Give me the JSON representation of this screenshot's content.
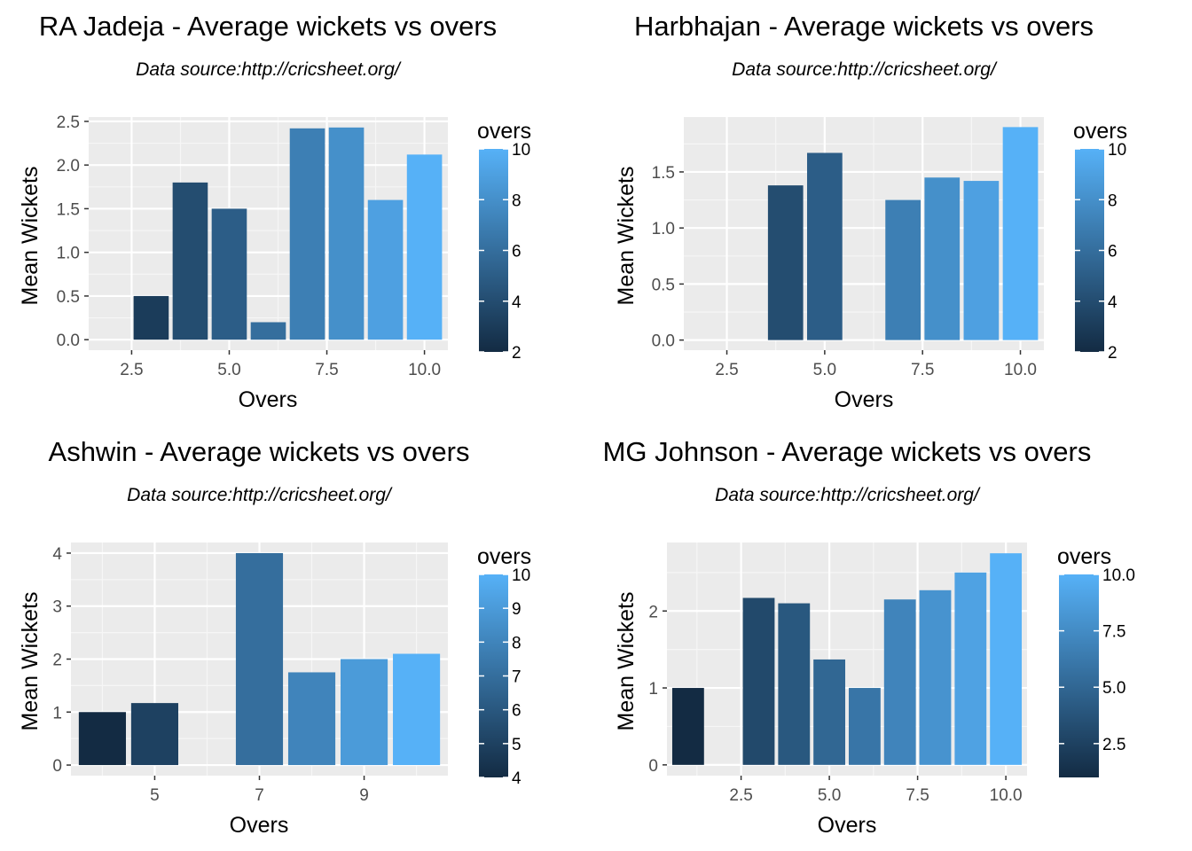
{
  "chart_data": [
    {
      "type": "bar",
      "title": "RA Jadeja - Average wickets vs overs",
      "subtitle": "Data source:http://cricsheet.org/",
      "xlabel": "Overs",
      "ylabel": "Mean Wickets",
      "xlim": [
        1.4,
        10.6
      ],
      "ylim": [
        -0.12,
        2.55
      ],
      "xticks": [
        2.5,
        5.0,
        7.5,
        10.0
      ],
      "xtick_labels": [
        "2.5",
        "5.0",
        "7.5",
        "10.0"
      ],
      "yticks": [
        0.0,
        0.5,
        1.0,
        1.5,
        2.0,
        2.5
      ],
      "ytick_labels": [
        "0.0",
        "0.5",
        "1.0",
        "1.5",
        "2.0",
        "2.5"
      ],
      "x": [
        3,
        4,
        5,
        6,
        7,
        8,
        9,
        10
      ],
      "values": [
        0.5,
        1.8,
        1.5,
        0.2,
        2.42,
        2.43,
        1.6,
        2.12
      ],
      "legend": {
        "title": "overs",
        "min": 2,
        "max": 10,
        "ticks": [
          2,
          4,
          6,
          8,
          10
        ],
        "tick_labels": [
          "2",
          "4",
          "6",
          "8",
          "10"
        ],
        "placement": "right"
      },
      "colors": {
        "low": "#132b43",
        "high": "#56b1f7"
      },
      "grid": true
    },
    {
      "type": "bar",
      "title": "Harbhajan - Average wickets vs overs",
      "subtitle": "Data source:http://cricsheet.org/",
      "xlabel": "Overs",
      "ylabel": "Mean Wickets",
      "xlim": [
        1.4,
        10.6
      ],
      "ylim": [
        -0.09,
        1.99
      ],
      "xticks": [
        2.5,
        5.0,
        7.5,
        10.0
      ],
      "xtick_labels": [
        "2.5",
        "5.0",
        "7.5",
        "10.0"
      ],
      "yticks": [
        0.0,
        0.5,
        1.0,
        1.5
      ],
      "ytick_labels": [
        "0.0",
        "0.5",
        "1.0",
        "1.5"
      ],
      "x": [
        4,
        5,
        7,
        8,
        9,
        10
      ],
      "values": [
        1.38,
        1.67,
        1.25,
        1.45,
        1.42,
        1.9
      ],
      "legend": {
        "title": "overs",
        "min": 2,
        "max": 10,
        "ticks": [
          2,
          4,
          6,
          8,
          10
        ],
        "tick_labels": [
          "2",
          "4",
          "6",
          "8",
          "10"
        ],
        "placement": "right"
      },
      "colors": {
        "low": "#132b43",
        "high": "#56b1f7"
      },
      "grid": true
    },
    {
      "type": "bar",
      "title": "Ashwin - Average wickets vs overs",
      "subtitle": "Data source:http://cricsheet.org/",
      "xlabel": "Overs",
      "ylabel": "Mean Wickets",
      "xlim": [
        3.4,
        10.6
      ],
      "ylim": [
        -0.2,
        4.2
      ],
      "xticks": [
        5,
        7,
        9
      ],
      "xtick_labels": [
        "5",
        "7",
        "9"
      ],
      "yticks": [
        0,
        1,
        2,
        3,
        4
      ],
      "ytick_labels": [
        "0",
        "1",
        "2",
        "3",
        "4"
      ],
      "x": [
        4,
        5,
        7,
        8,
        9,
        10
      ],
      "values": [
        1.0,
        1.17,
        4.0,
        1.75,
        2.0,
        2.1
      ],
      "legend": {
        "title": "overs",
        "min": 4,
        "max": 10,
        "ticks": [
          4,
          5,
          6,
          7,
          8,
          9,
          10
        ],
        "tick_labels": [
          "4",
          "5",
          "6",
          "7",
          "8",
          "9",
          "10"
        ],
        "placement": "right"
      },
      "colors": {
        "low": "#132b43",
        "high": "#56b1f7"
      },
      "grid": true
    },
    {
      "type": "bar",
      "title": "MG Johnson - Average wickets vs overs",
      "subtitle": "Data source:http://cricsheet.org/",
      "xlabel": "Overs",
      "ylabel": "Mean Wickets",
      "xlim": [
        0.4,
        10.6
      ],
      "ylim": [
        -0.14,
        2.89
      ],
      "xticks": [
        2.5,
        5.0,
        7.5,
        10.0
      ],
      "xtick_labels": [
        "2.5",
        "5.0",
        "7.5",
        "10.0"
      ],
      "yticks": [
        0,
        1,
        2
      ],
      "ytick_labels": [
        "0",
        "1",
        "2"
      ],
      "x": [
        1,
        3,
        4,
        5,
        6,
        7,
        8,
        9,
        10
      ],
      "values": [
        1.0,
        2.17,
        2.1,
        1.37,
        1.0,
        2.15,
        2.27,
        2.5,
        2.75
      ],
      "legend": {
        "title": "overs",
        "min": 1,
        "max": 10,
        "ticks": [
          2.5,
          5.0,
          7.5,
          10.0
        ],
        "tick_labels": [
          "2.5",
          "5.0",
          "7.5",
          "10.0"
        ],
        "placement": "right"
      },
      "colors": {
        "low": "#132b43",
        "high": "#56b1f7"
      },
      "grid": true
    }
  ]
}
